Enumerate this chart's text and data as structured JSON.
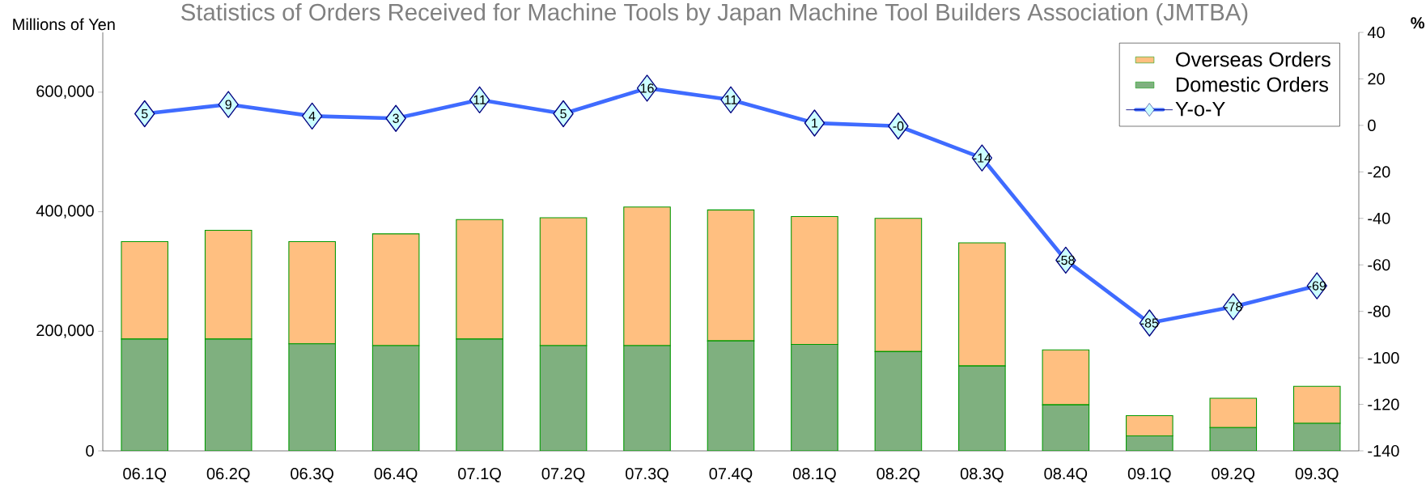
{
  "chart_data": {
    "type": "bar",
    "stacked": true,
    "title": "Statistics of Orders Received for Machine Tools by Japan Machine Tool Builders Association (JMTBA)",
    "ylabel": "Millions of Yen",
    "y2label": "%",
    "categories": [
      "06.1Q",
      "06.2Q",
      "06.3Q",
      "06.4Q",
      "07.1Q",
      "07.2Q",
      "07.3Q",
      "07.4Q",
      "08.1Q",
      "08.2Q",
      "08.3Q",
      "08.4Q",
      "09.1Q",
      "09.2Q",
      "09.3Q"
    ],
    "series": [
      {
        "name": "Domestic Orders",
        "color": "#7fb07f",
        "values": [
          187000,
          187000,
          179000,
          176000,
          187000,
          176000,
          176000,
          184000,
          178000,
          166000,
          142000,
          77000,
          25000,
          39000,
          46000
        ]
      },
      {
        "name": "Overseas Orders",
        "color": "#ffbf80",
        "values": [
          163000,
          182000,
          171000,
          187000,
          200000,
          214000,
          232000,
          219000,
          214000,
          223000,
          206000,
          92000,
          34000,
          49000,
          62000
        ]
      },
      {
        "name": "Y-o-Y",
        "type": "line",
        "axis": "y2",
        "color": "#3f6bff",
        "marker": "diamond",
        "values": [
          5,
          9,
          4,
          3,
          11,
          5,
          16,
          11,
          1,
          -0.3,
          -14,
          -58,
          -85,
          -78,
          -69
        ],
        "value_labels": [
          "5",
          "9",
          "4",
          "3",
          "11",
          "5",
          "16",
          "11",
          "1",
          "-0",
          "-14",
          "-58",
          "-85",
          "-78",
          "-69"
        ]
      }
    ],
    "ylim": [
      0,
      700000
    ],
    "yticks": [
      0,
      {
        "value": 200000,
        "label": "200,000"
      },
      {
        "value": 400000,
        "label": "400,000"
      },
      {
        "value": 600000,
        "label": "600,000"
      }
    ],
    "y2lim": [
      -140,
      40
    ],
    "y2ticks": [
      -140,
      -120,
      -100,
      -80,
      -60,
      -40,
      -20,
      0,
      20,
      40
    ],
    "legend": "top right",
    "grid": false
  }
}
